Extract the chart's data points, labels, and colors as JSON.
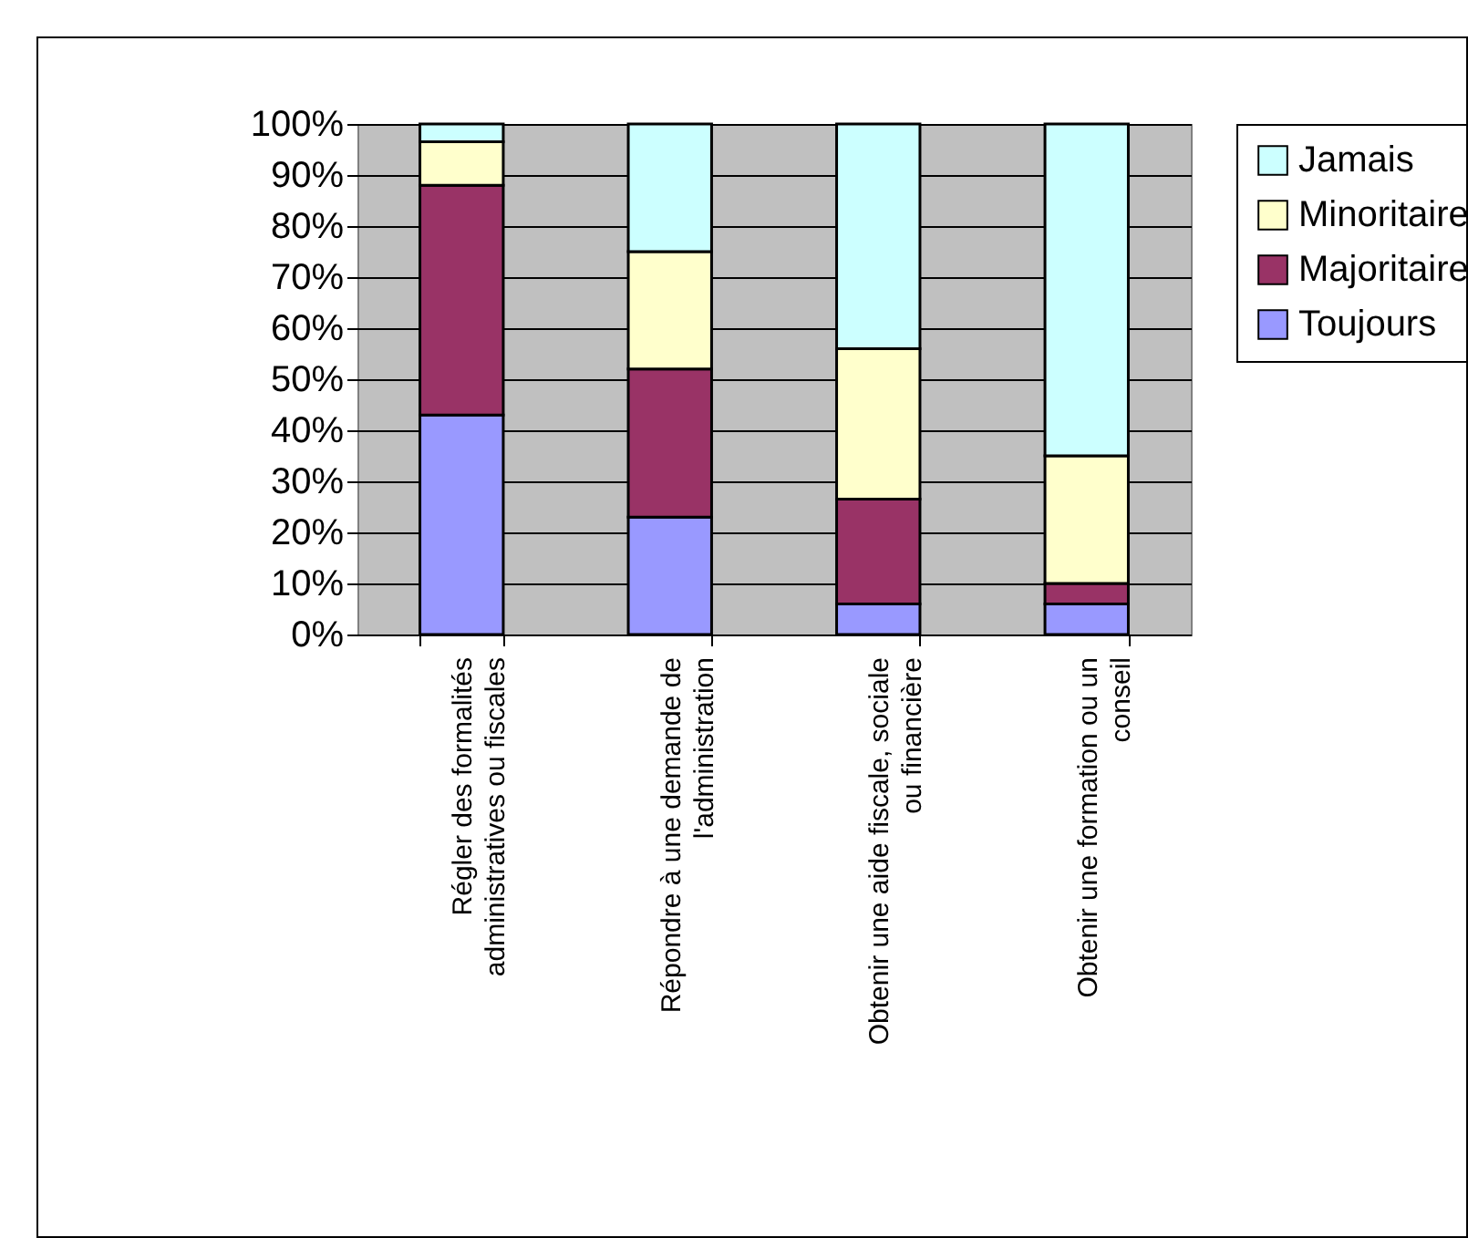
{
  "chart_data": {
    "type": "bar",
    "stacked": true,
    "categories": [
      "Régler des formalités administratives ou fiscales",
      "Répondre à une demande de l'administration",
      "Obtenir une aide fiscale, sociale ou financière",
      "Obtenir une formation ou un conseil"
    ],
    "series": [
      {
        "name": "Toujours",
        "color": "#9999ff",
        "values": [
          43,
          23,
          6,
          6
        ]
      },
      {
        "name": "Majoritaire",
        "color": "#993366",
        "values": [
          45,
          29,
          20.5,
          4
        ]
      },
      {
        "name": "Minoritaire",
        "color": "#ffffcc",
        "values": [
          8.5,
          23,
          29.5,
          25
        ]
      },
      {
        "name": "Jamais",
        "color": "#ccffff",
        "values": [
          3.5,
          25,
          44,
          65
        ]
      }
    ],
    "ylim": [
      0,
      100
    ],
    "yticks": [
      {
        "value": 0,
        "label": "0%"
      },
      {
        "value": 10,
        "label": "10%"
      },
      {
        "value": 20,
        "label": "20%"
      },
      {
        "value": 30,
        "label": "30%"
      },
      {
        "value": 40,
        "label": "40%"
      },
      {
        "value": 50,
        "label": "50%"
      },
      {
        "value": 60,
        "label": "60%"
      },
      {
        "value": 70,
        "label": "70%"
      },
      {
        "value": 80,
        "label": "80%"
      },
      {
        "value": 90,
        "label": "90%"
      },
      {
        "value": 100,
        "label": "100%"
      }
    ],
    "grid": "y",
    "legend": "right"
  }
}
